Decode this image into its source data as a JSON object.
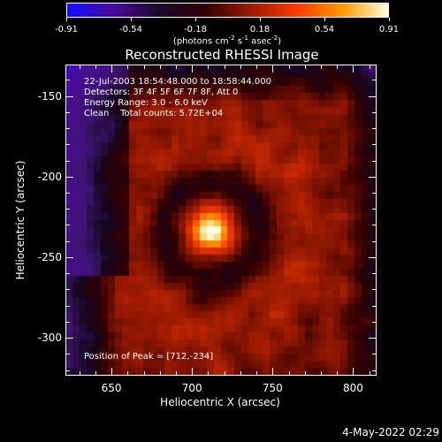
{
  "colorbar": {
    "ticks": [
      "-0.91",
      "-0.54",
      "-0.18",
      "0.18",
      "0.54",
      "0.91"
    ],
    "units_main": "(photons cm",
    "units_e1": "-2",
    "units_s": " s",
    "units_e2": "-1",
    "units_a": " asec",
    "units_e3": "-2",
    "units_end": ")"
  },
  "title": "Reconstructed RHESSI Image",
  "info": {
    "time": "22-Jul-2003 18:54:48.000 to 18:58:44.000",
    "detectors": "Detectors: 3F 4F 5F 6F 7F 8F, Att 0",
    "energy": "Energy Range: 3.0 - 6.0 keV",
    "clean": "Clean    Total counts: 5.72E+04",
    "peak": "Position of Peak = [712,-234]"
  },
  "chart_data": {
    "type": "heatmap",
    "title": "Reconstructed RHESSI Image",
    "xlabel": "Heliocentric X (arcsec)",
    "ylabel": "Heliocentric Y (arcsec)",
    "xlim": [
      622,
      814
    ],
    "ylim": [
      -323,
      -131
    ],
    "xticks": [
      "650",
      "700",
      "750",
      "800"
    ],
    "yticks": [
      "-150",
      "-200",
      "-250",
      "-300"
    ],
    "zlim": [
      -0.91,
      0.91
    ],
    "peak": [
      712,
      -234
    ],
    "colormap": [
      "#1010ff",
      "#4b0a9e",
      "#1a0a2a",
      "#300000",
      "#9a1a00",
      "#ff3a00",
      "#ff9a00",
      "#ffffe0"
    ]
  },
  "datestamp": "4-May-2022 02:29"
}
